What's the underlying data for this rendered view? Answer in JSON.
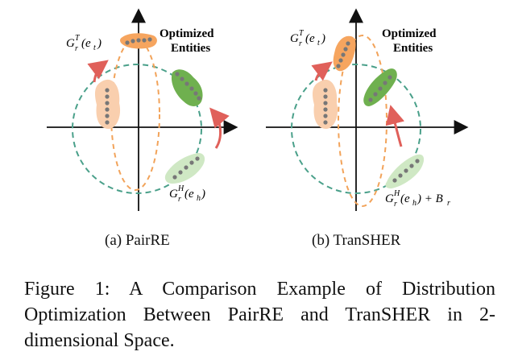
{
  "figure": {
    "panels": [
      {
        "label_opt": [
          "Optimized",
          "Entities"
        ],
        "tail_main": "G",
        "tail_sup": "T",
        "tail_sub": "r",
        "tail_arg": "(e",
        "tail_argsub": "t",
        "tail_close": ")",
        "head_main": "G",
        "head_sup": "H",
        "head_sub": "r",
        "head_arg": "(e",
        "head_argsub": "h",
        "head_close": ")",
        "head_extra": "",
        "subcaption": "(a) PairRE"
      },
      {
        "label_opt": [
          "Optimized",
          "Entities"
        ],
        "tail_main": "G",
        "tail_sup": "T",
        "tail_sub": "r",
        "tail_arg": "(e",
        "tail_argsub": "t",
        "tail_close": ")",
        "head_main": "G",
        "head_sup": "H",
        "head_sub": "r",
        "head_arg": "(e",
        "head_argsub": "h",
        "head_close": ")",
        "head_extra": " + B",
        "head_extra_sub": "r",
        "subcaption": "(b) TranSHER"
      }
    ],
    "caption": "Figure 1:  A Comparison Example of Distribution Optimization Between PairRE and TranSHER in 2-dimensional Space.",
    "colors": {
      "orange": "#f6a55f",
      "orange_light": "#f9cfae",
      "green": "#6fb04f",
      "green_light": "#cfe8c4",
      "circle": "#4aa08a",
      "ellipse": "#f2a35a",
      "arrow": "#e0605a",
      "dot": "#777777"
    }
  }
}
